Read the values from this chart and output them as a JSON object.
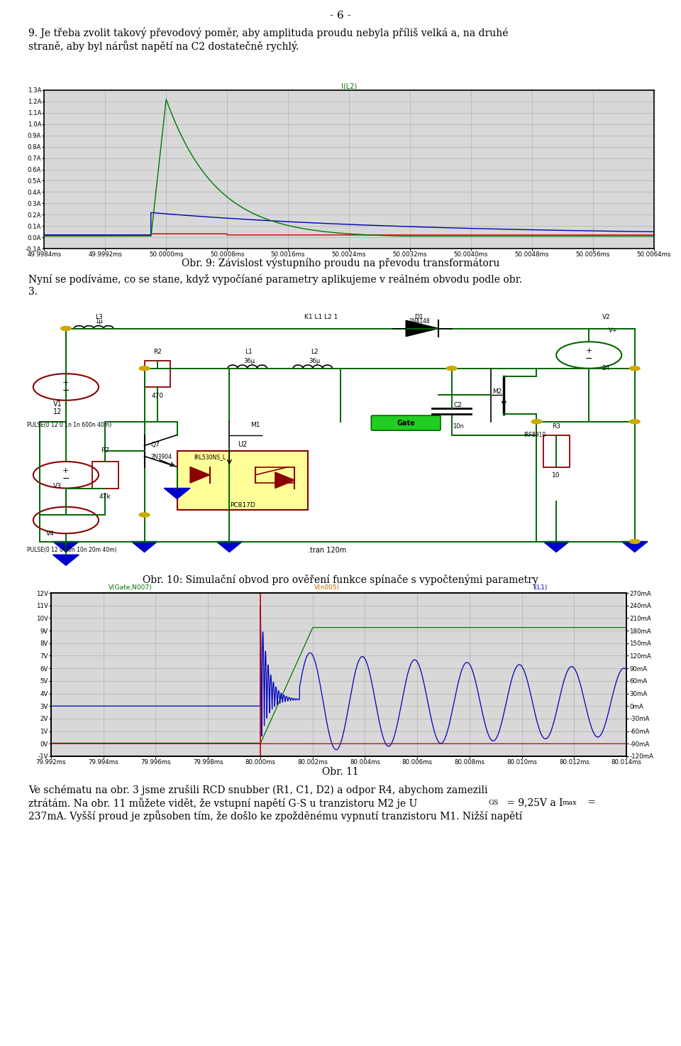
{
  "page_number": "- 6 -",
  "background_color": "#ffffff",
  "text_color": "#000000",
  "line1": "9. Je třeba zvolit takový převodový poměr, aby amplituda proudu nebyla příliš velká a, na druhé",
  "line2": "straně, aby byl nárůst napětí na C2 dostatečně rychlý.",
  "graph1_title": "I(L2)",
  "graph1_xlabel_ticks": [
    "49.9984ms",
    "49.9992ms",
    "50.0000ms",
    "50.0008ms",
    "50.0016ms",
    "50.0024ms",
    "50.0032ms",
    "50.0040ms",
    "50.0048ms",
    "50.0056ms",
    "50.0064ms"
  ],
  "graph1_ylabel_ticks": [
    "-0.1A",
    "0.0A",
    "0.1A",
    "0.2A",
    "0.3A",
    "0.4A",
    "0.5A",
    "0.6A",
    "0.7A",
    "0.8A",
    "0.9A",
    "1.0A",
    "1.1A",
    "1.2A",
    "1.3A"
  ],
  "graph1_caption": "Obr. 9: Závislost výstupního proudu na převodu transformátoru",
  "text_nyni_1": "Nyní se podíváme, co se stane, když vypočíané parametry aplikujeme v reálném obvodu podle obr.",
  "text_nyni_2": "3.",
  "circuit_caption": "Obr. 10: Simulační obvod pro ověření funkce spínače s vypočtenými parametry",
  "graph2_title_left": "V(Gate,N007)",
  "graph2_title_mid": "V(n005)",
  "graph2_title_right": "I(L1)",
  "graph2_xlabel_ticks": [
    "79.992ms",
    "79.994ms",
    "79.996ms",
    "79.998ms",
    "80.000ms",
    "80.002ms",
    "80.004ms",
    "80.006ms",
    "80.008ms",
    "80.010ms",
    "80.012ms",
    "80.014ms"
  ],
  "graph2_ylabel_left_ticks": [
    "-1V",
    "0V",
    "1V",
    "2V",
    "3V",
    "4V",
    "5V",
    "6V",
    "7V",
    "8V",
    "9V",
    "10V",
    "11V",
    "12V"
  ],
  "graph2_ylabel_right_ticks": [
    "-120mA",
    "-90mA",
    "-60mA",
    "-30mA",
    "0mA",
    "30mA",
    "60mA",
    "90mA",
    "120mA",
    "150mA",
    "180mA",
    "210mA",
    "240mA",
    "270mA"
  ],
  "graph2_caption": "Obr. 11",
  "final_line1": "Ve schématu na obr. 3 jsme zrušili RCD snubber (R1, C1, D2) a odpor R4, abychom zamezili",
  "final_line2": "ztrátám. Na obr. 11 můžete vidět, že vstupní napětí G-S u tranzistoru M2 je U",
  "final_line2b": "GS",
  "final_line2c": " = 9,25V a I",
  "final_line2d": "max",
  "final_line2e": " =",
  "final_line3": "237mA. Vyšší proud je způsoben tím, že došlo ke zpožděnému vypnutí tranzistoru M1. Nižší napětí",
  "grid_color": "#b0b0b0",
  "graph_bg": "#d8d8d8",
  "green_color": "#007700",
  "blue_color": "#0000bb",
  "red_color": "#cc0000",
  "orange_color": "#cc6600",
  "dark_red": "#8b0000",
  "yellow_fill": "#ffff99",
  "wire_green": "#006600"
}
